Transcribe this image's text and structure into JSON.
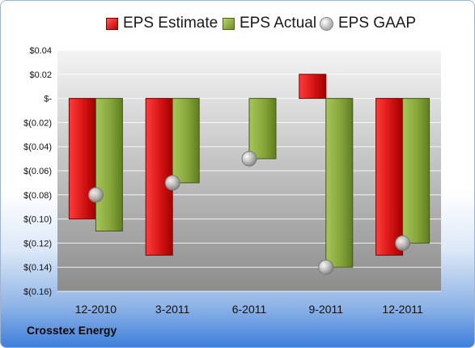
{
  "company": "Crosstex Energy",
  "colors": {
    "estimate": "#d91c1c",
    "actual": "#8aaa3c",
    "gaap": "#b5b5b5"
  },
  "chart_data": {
    "type": "bar",
    "categories": [
      "12-2010",
      "3-2011",
      "6-2011",
      "9-2011",
      "12-2011"
    ],
    "series": [
      {
        "name": "EPS Estimate",
        "kind": "bar",
        "values": [
          -0.1,
          -0.13,
          null,
          0.02,
          -0.13
        ]
      },
      {
        "name": "EPS Actual",
        "kind": "bar",
        "values": [
          -0.11,
          -0.07,
          -0.05,
          -0.14,
          -0.12
        ]
      },
      {
        "name": "EPS GAAP",
        "kind": "marker",
        "values": [
          -0.08,
          -0.07,
          -0.05,
          -0.14,
          -0.12
        ]
      }
    ],
    "yticks": [
      "$0.04",
      "$0.02",
      "$-",
      "$(0.02)",
      "$(0.04)",
      "$(0.06)",
      "$(0.08)",
      "$(0.10)",
      "$(0.12)",
      "$(0.14)",
      "$(0.16)"
    ],
    "ylim": [
      -0.16,
      0.04
    ],
    "grid": true,
    "legend": "top"
  }
}
